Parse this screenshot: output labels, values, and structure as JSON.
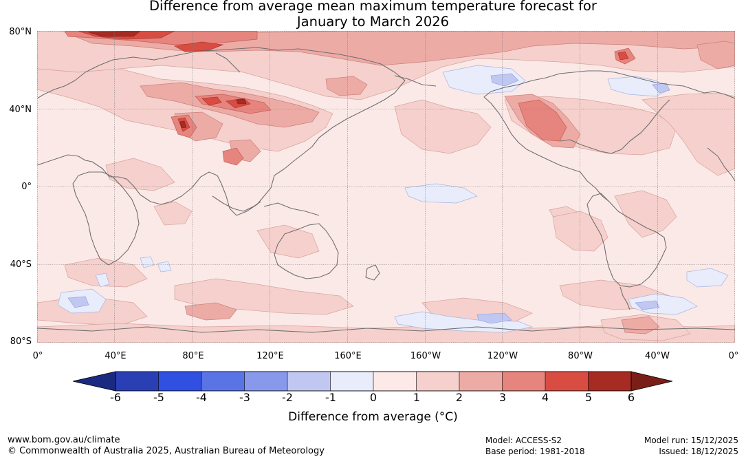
{
  "title": {
    "line1": "Difference from average mean maximum temperature forecast for",
    "line2": "January to March 2026"
  },
  "axes": {
    "latitude_labels": [
      "80°N",
      "40°N",
      "0°",
      "40°S",
      "80°S"
    ],
    "longitude_labels": [
      "0°",
      "40°E",
      "80°E",
      "120°E",
      "160°E",
      "160°W",
      "120°W",
      "80°W",
      "40°W",
      "0°"
    ]
  },
  "colorbar": {
    "label": "Difference from average (°C)",
    "ticks": [
      "-6",
      "-5",
      "-4",
      "-3",
      "-2",
      "-1",
      "0",
      "1",
      "2",
      "3",
      "4",
      "5",
      "6"
    ],
    "under_color": "#1a2a80",
    "colors": [
      "#2a3fb4",
      "#2f50e0",
      "#5a74e6",
      "#8899ec",
      "#c0c8f2",
      "#e8ecfb",
      "#fce9e8",
      "#f5d0cc",
      "#edaba6",
      "#e6847e",
      "#d94c42",
      "#a62b22"
    ],
    "over_color": "#7a1e18"
  },
  "map": {
    "background_color": "#fbe9e7",
    "coast_color": "#6e6e6e",
    "grid_color": "#777777"
  },
  "footer": {
    "website": "www.bom.gov.au/climate",
    "copyright": "© Commonwealth of Australia 2025, Australian Bureau of Meteorology",
    "model": "Model: ACCESS-S2",
    "base_period": "Base period: 1981-2018",
    "model_run": "Model run: 15/12/2025",
    "issued": "Issued: 18/12/2025"
  }
}
